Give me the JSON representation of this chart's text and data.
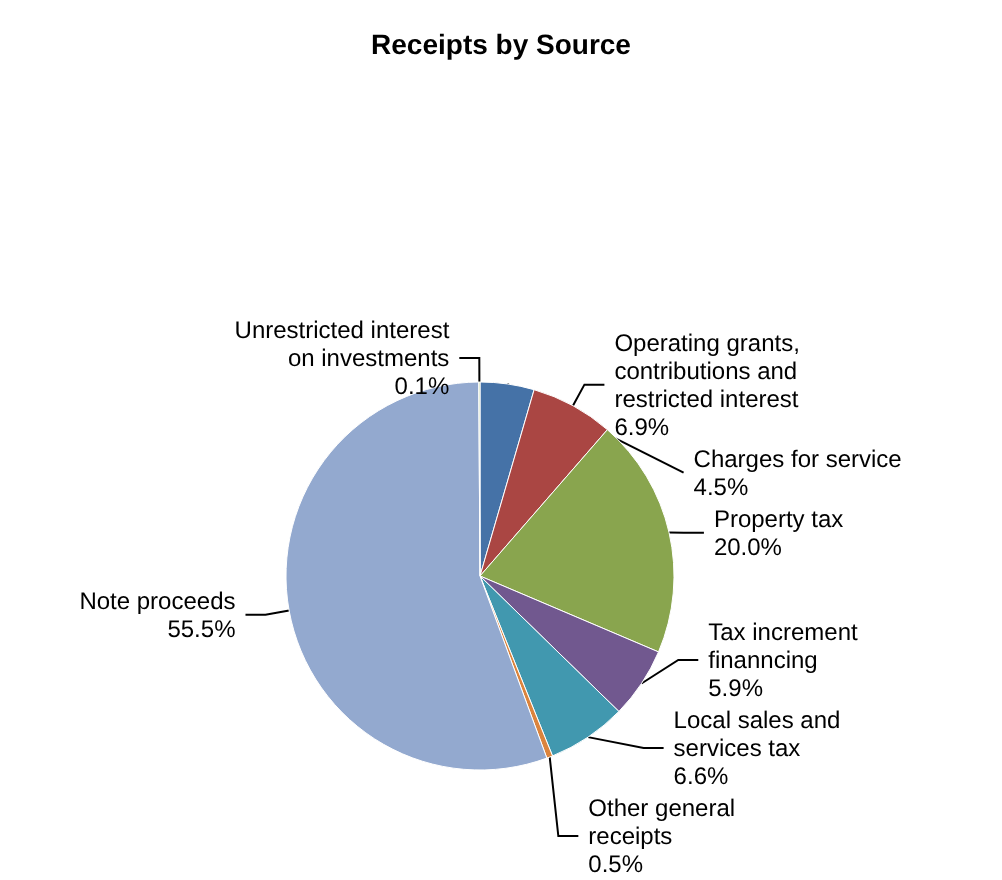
{
  "chart_data": {
    "type": "pie",
    "title": "Receipts by Source",
    "categories": [
      "Charges for service",
      "Operating grants, contributions and restricted interest",
      "Property tax",
      "Tax increment finanncing",
      "Local sales and services tax",
      "Other general receipts",
      "Note proceeds",
      "Unrestricted interest on investments"
    ],
    "values": [
      4.5,
      6.9,
      20.0,
      5.9,
      6.6,
      0.5,
      55.5,
      0.1
    ],
    "value_labels": [
      "4.5%",
      "6.9%",
      "20.0%",
      "5.9%",
      "6.6%",
      "0.5%",
      "55.5%",
      "0.1%"
    ],
    "colors": [
      "#4572a7",
      "#aa4643",
      "#89a54e",
      "#71588f",
      "#4198af",
      "#db843d",
      "#93a9cf",
      "#b9cd96"
    ],
    "legend": false
  }
}
